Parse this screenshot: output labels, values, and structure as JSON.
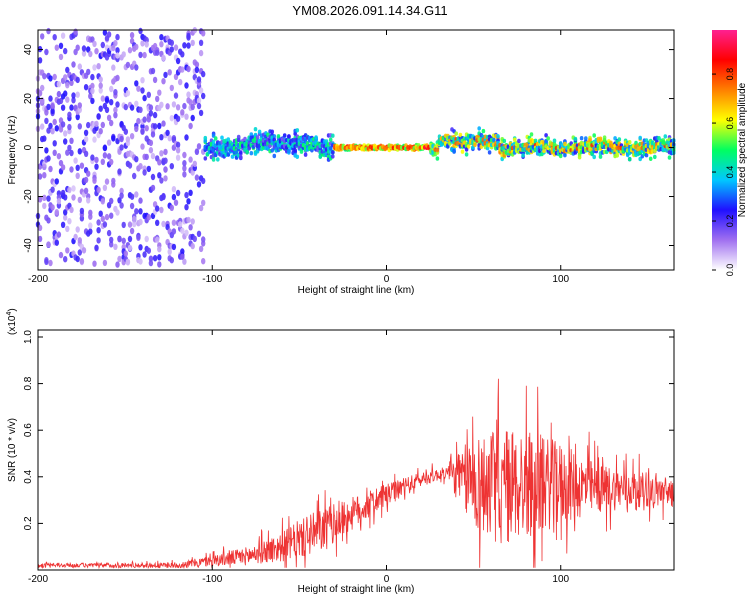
{
  "title": "YM08.2026.091.14.34.G11",
  "chart_data": [
    {
      "type": "heatmap",
      "xlabel": "Height of straight line (km)",
      "ylabel": "Frequency (Hz)",
      "xlim": [
        -200,
        165
      ],
      "ylim": [
        -50,
        48
      ],
      "xticks": [
        -200,
        -100,
        0,
        100
      ],
      "xtick_labels": [
        "-200",
        "-100",
        "0",
        "100"
      ],
      "yticks": [
        -40,
        -20,
        0,
        20,
        40
      ],
      "ytick_labels": [
        "-40",
        "-20",
        "0",
        "20",
        "40"
      ],
      "colorbar": {
        "label": "Normalized spectral amplitude",
        "range": [
          0,
          0.98
        ],
        "ticks": [
          0,
          0.2,
          0.4,
          0.6,
          0.8
        ],
        "tick_labels": [
          "0.0",
          "0.2",
          "0.4",
          "0.6",
          "0.8"
        ],
        "colors": [
          "#ffffff",
          "#a070f0",
          "#2010ff",
          "#00c8ff",
          "#00ff60",
          "#ffff00",
          "#ff8000",
          "#ff0000",
          "#ff2090"
        ]
      },
      "regions": [
        {
          "x_range": [
            -200,
            -105
          ],
          "freq_spread": 48,
          "amplitude": "low (0.05-0.25)"
        },
        {
          "x_range": [
            -125,
            -30
          ],
          "freq_spread": 8,
          "amplitude": "medium (0.2-0.5)"
        },
        {
          "x_range": [
            -30,
            25
          ],
          "freq_spread": 1.5,
          "amplitude": "high (0.7-0.95)"
        },
        {
          "x_range": [
            25,
            165
          ],
          "freq_spread": 6,
          "amplitude": "medium-high (0.3-0.9)"
        }
      ]
    },
    {
      "type": "line",
      "xlabel": "Height of straight line (km)",
      "ylabel": "SNR (10 * v/v)",
      "y_multiplier_label": "(x10",
      "y_multiplier_exp": "4",
      "y_multiplier_close": ")",
      "xlim": [
        -200,
        165
      ],
      "ylim": [
        0,
        1.03
      ],
      "xticks": [
        -200,
        -100,
        0,
        100
      ],
      "xtick_labels": [
        "-200",
        "-100",
        "0",
        "100"
      ],
      "yticks": [
        0.2,
        0.4,
        0.6,
        0.8,
        1.0
      ],
      "ytick_labels": [
        "0.2",
        "0.4",
        "0.6",
        "0.8",
        "1.0"
      ],
      "series": [
        {
          "name": "SNR",
          "color": "#ee3333",
          "envelope": {
            "x": [
              -200,
              -120,
              -100,
              -80,
              -60,
              -40,
              -20,
              0,
              20,
              35,
              40,
              50,
              60,
              70,
              80,
              90,
              100,
              110,
              120,
              140,
              165
            ],
            "base": [
              0.02,
              0.02,
              0.04,
              0.06,
              0.1,
              0.16,
              0.24,
              0.32,
              0.39,
              0.42,
              0.4,
              0.38,
              0.36,
              0.36,
              0.37,
              0.37,
              0.37,
              0.36,
              0.35,
              0.35,
              0.33
            ],
            "spread": [
              0.01,
              0.015,
              0.03,
              0.05,
              0.08,
              0.12,
              0.09,
              0.06,
              0.04,
              0.03,
              0.12,
              0.25,
              0.3,
              0.32,
              0.3,
              0.26,
              0.22,
              0.18,
              0.14,
              0.1,
              0.08
            ]
          }
        }
      ]
    }
  ]
}
